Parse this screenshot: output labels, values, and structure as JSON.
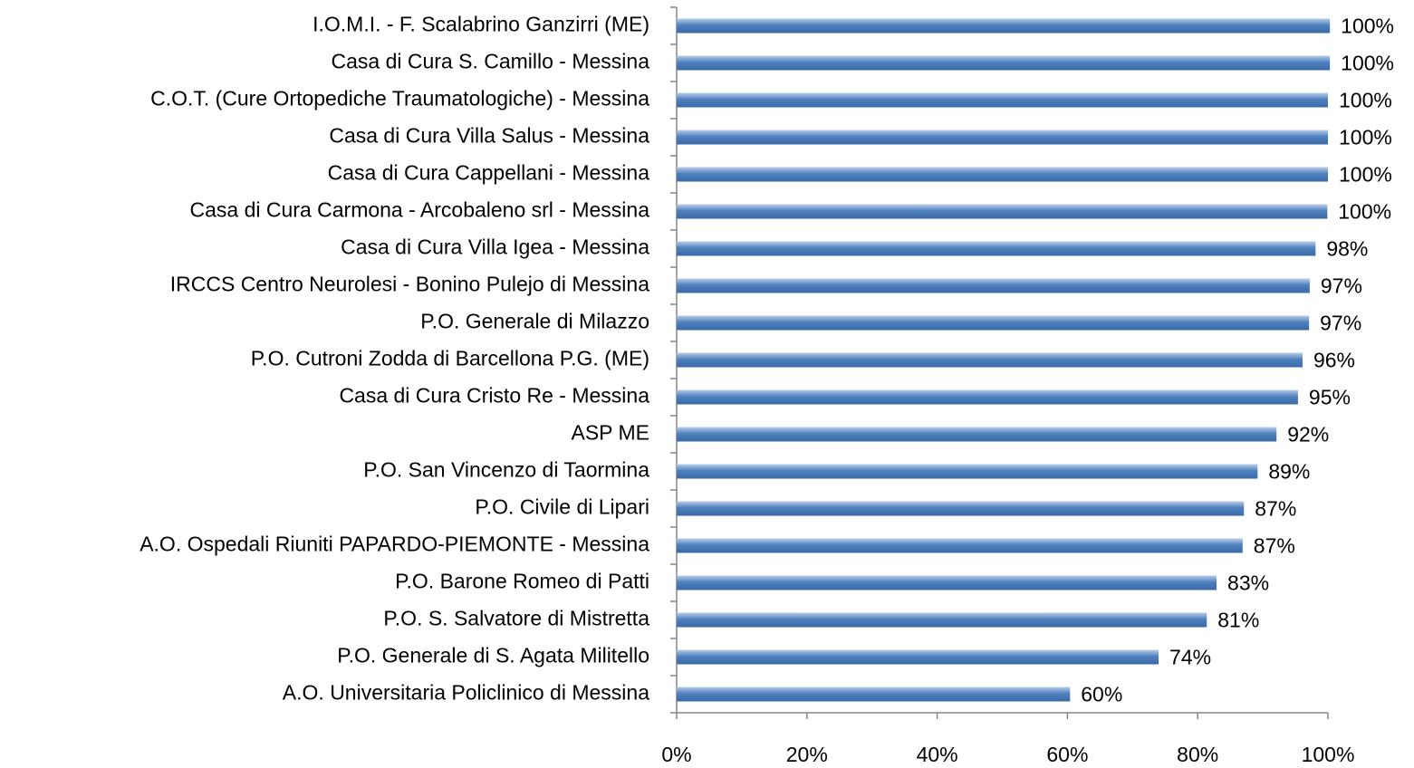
{
  "chart_data": {
    "type": "barh",
    "categories": [
      "I.O.M.I.  - F. Scalabrino Ganzirri (ME)",
      "Casa di Cura  S. Camillo  - Messina",
      "C.O.T. (Cure Ortopediche Traumatologiche) - Messina",
      "Casa di Cura Villa Salus  - Messina",
      "Casa di Cura  Cappellani  - Messina",
      "Casa di Cura  Carmona - Arcobaleno srl  - Messina",
      "Casa di Cura Villa Igea  - Messina",
      "IRCCS   Centro Neurolesi - Bonino Pulejo  di Messina",
      "P.O.  Generale  di Milazzo",
      "P.O.  Cutroni Zodda  di Barcellona P.G. (ME)",
      "Casa di Cura  Cristo Re  - Messina",
      "ASP ME",
      "P.O.  San Vincenzo  di Taormina",
      "P.O.  Civile  di Lipari",
      "A.O. Ospedali Riuniti   PAPARDO-PIEMONTE  - Messina",
      "P.O.  Barone Romeo  di Patti",
      "P.O.  S. Salvatore  di Mistretta",
      "P.O.  Generale  di S. Agata Militello",
      "A.O. Universitaria Policlinico di Messina"
    ],
    "values": [
      100.3,
      100.3,
      100,
      100,
      100,
      99.9,
      98.1,
      97.2,
      97.1,
      96.1,
      95.4,
      92.1,
      89.2,
      87.1,
      86.9,
      82.9,
      81.4,
      74,
      60.4
    ],
    "value_labels": [
      "100%",
      "100%",
      "100%",
      "100%",
      "100%",
      "100%",
      "98%",
      "97%",
      "97%",
      "96%",
      "95%",
      "92%",
      "89%",
      "87%",
      "87%",
      "83%",
      "81%",
      "74%",
      "60%"
    ],
    "color": "#4f81bd",
    "xlim": [
      0,
      100
    ],
    "xticks": [
      {
        "value": 0,
        "label": "0%"
      },
      {
        "value": 20,
        "label": "20%"
      },
      {
        "value": 40,
        "label": "40%"
      },
      {
        "value": 60,
        "label": "60%"
      },
      {
        "value": 80,
        "label": "80%"
      },
      {
        "value": 100,
        "label": "100%"
      }
    ]
  }
}
